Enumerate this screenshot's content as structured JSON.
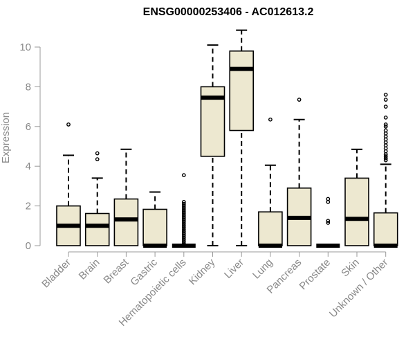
{
  "chart_data": {
    "type": "boxplot",
    "title": "ENSG00000253406 - AC012613.2",
    "xlabel": "",
    "ylabel": "Expression",
    "ylim": [
      0,
      11
    ],
    "yticks": [
      0,
      2,
      4,
      6,
      8,
      10
    ],
    "box_fill": "#ede8d0",
    "median_color": "#000000",
    "grid": false,
    "categories": [
      "Bladder",
      "Brain",
      "Breast",
      "Gastric",
      "Hematopoietic cells",
      "Kidney",
      "Liver",
      "Lung",
      "Pancreas",
      "Prostate",
      "Skin",
      "Unknown / Other"
    ],
    "boxes": [
      {
        "q1": 0.0,
        "median": 1.0,
        "q3": 2.0,
        "whisker_low": 0.0,
        "whisker_high": 4.55,
        "outliers": [
          6.1
        ]
      },
      {
        "q1": 0.0,
        "median": 1.0,
        "q3": 1.62,
        "whisker_low": 0.0,
        "whisker_high": 3.4,
        "outliers": [
          4.35,
          4.65
        ]
      },
      {
        "q1": 0.0,
        "median": 1.32,
        "q3": 2.35,
        "whisker_low": 0.0,
        "whisker_high": 4.85,
        "outliers": []
      },
      {
        "q1": 0.0,
        "median": 0.0,
        "q3": 1.83,
        "whisker_low": 0.0,
        "whisker_high": 2.7,
        "outliers": []
      },
      {
        "q1": 0.0,
        "median": 0.0,
        "q3": 0.0,
        "whisker_low": 0.0,
        "whisker_high": 0.0,
        "outliers": [
          0.1,
          0.2,
          0.3,
          0.4,
          0.5,
          0.6,
          0.7,
          0.8,
          0.9,
          1.0,
          1.1,
          1.2,
          1.3,
          1.4,
          1.5,
          1.6,
          1.7,
          1.8,
          1.9,
          2.0,
          2.1,
          2.2,
          3.55
        ]
      },
      {
        "q1": 4.5,
        "median": 7.45,
        "q3": 8.0,
        "whisker_low": 0.0,
        "whisker_high": 10.1,
        "outliers": []
      },
      {
        "q1": 5.8,
        "median": 8.9,
        "q3": 9.8,
        "whisker_low": 0.0,
        "whisker_high": 10.85,
        "outliers": []
      },
      {
        "q1": 0.0,
        "median": 0.0,
        "q3": 1.7,
        "whisker_low": 0.0,
        "whisker_high": 4.05,
        "outliers": [
          6.35
        ]
      },
      {
        "q1": 0.0,
        "median": 1.4,
        "q3": 2.9,
        "whisker_low": 0.0,
        "whisker_high": 6.35,
        "outliers": [
          7.35
        ]
      },
      {
        "q1": 0.0,
        "median": 0.0,
        "q3": 0.0,
        "whisker_low": 0.0,
        "whisker_high": 0.0,
        "outliers": [
          1.15,
          1.25,
          2.2,
          2.35
        ]
      },
      {
        "q1": 0.0,
        "median": 1.35,
        "q3": 3.4,
        "whisker_low": 0.0,
        "whisker_high": 4.85,
        "outliers": []
      },
      {
        "q1": 0.0,
        "median": 0.0,
        "q3": 1.65,
        "whisker_low": 0.0,
        "whisker_high": 4.1,
        "outliers": [
          4.3,
          4.4,
          4.5,
          4.6,
          4.75,
          4.9,
          5.05,
          5.2,
          5.35,
          5.5,
          5.65,
          5.8,
          6.0,
          6.1,
          6.45,
          7.0,
          7.35,
          7.6
        ]
      }
    ]
  }
}
